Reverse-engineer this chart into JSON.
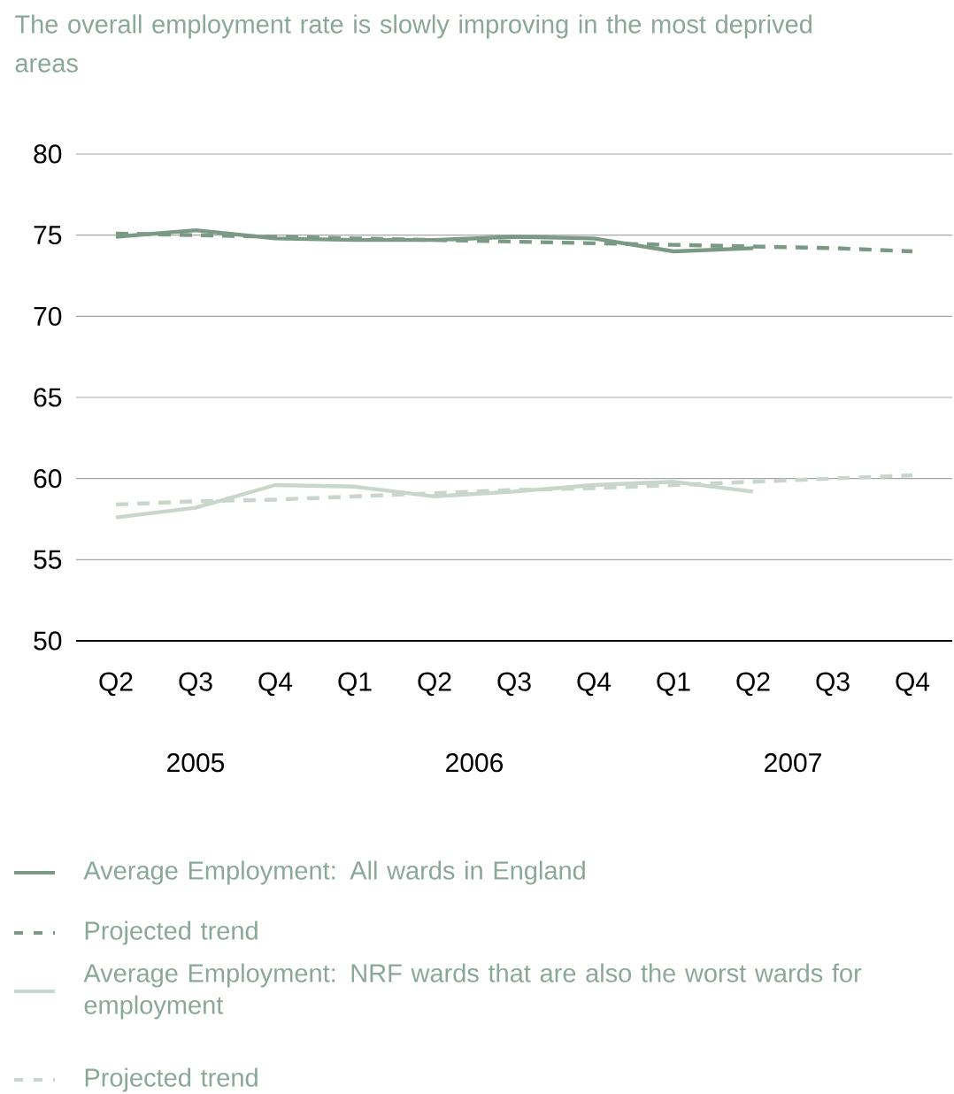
{
  "chart_data": {
    "type": "line",
    "title": "The overall employment rate is slowly improving in the most deprived areas",
    "categories": [
      "Q2",
      "Q3",
      "Q4",
      "Q1",
      "Q2",
      "Q3",
      "Q4",
      "Q1",
      "Q2",
      "Q3",
      "Q4"
    ],
    "series": [
      {
        "name": "Average Employment: All wards in England",
        "color": "#7a9a86",
        "line_style": "solid",
        "values": [
          74.9,
          75.3,
          74.8,
          74.7,
          74.7,
          74.9,
          74.8,
          74.0,
          74.2,
          null,
          null
        ]
      },
      {
        "name": "Projected trend",
        "color": "#7a9a86",
        "line_style": "dashed",
        "values": [
          75.1,
          75.0,
          74.9,
          74.8,
          74.7,
          74.6,
          74.5,
          74.4,
          74.3,
          74.2,
          74.0
        ]
      },
      {
        "name": "Average Employment: NRF wards that are also the worst wards for employment",
        "color": "#c8d6cc",
        "line_style": "solid",
        "values": [
          57.6,
          58.2,
          59.6,
          59.5,
          58.9,
          59.2,
          59.6,
          59.8,
          59.2,
          null,
          null
        ]
      },
      {
        "name": "Projected trend",
        "color": "#c8d6cc",
        "line_style": "dashed",
        "values": [
          58.4,
          58.6,
          58.7,
          58.9,
          59.1,
          59.3,
          59.4,
          59.6,
          59.8,
          60.0,
          60.2
        ]
      }
    ],
    "ylim": [
      50,
      80
    ],
    "yticks": [
      50,
      55,
      60,
      65,
      70,
      75,
      80
    ],
    "grid": "y",
    "legend": "bottom",
    "annotations": [
      "2005",
      "2006",
      "2007"
    ]
  }
}
